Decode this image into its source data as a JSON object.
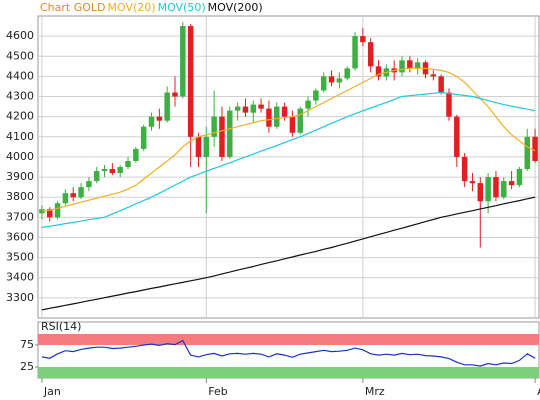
{
  "chart_data": [
    {
      "type": "candlestick",
      "title": "Chart GOLD",
      "title_color": "#e08a20",
      "ylim": [
        3200,
        4700
      ],
      "yticks": [
        3300,
        3400,
        3500,
        3600,
        3700,
        3800,
        3900,
        4000,
        4100,
        4200,
        4300,
        4400,
        4500,
        4600
      ],
      "xticks": [
        {
          "value": 0,
          "label": "Jan"
        },
        {
          "value": 21,
          "label": "Feb"
        },
        {
          "value": 41,
          "label": "Mrz"
        },
        {
          "value": 63,
          "label": "A"
        }
      ],
      "grid": true,
      "up_color": "#3cb043",
      "down_color": "#e02020",
      "open": [
        3720,
        3740,
        3700,
        3770,
        3820,
        3800,
        3850,
        3880,
        3930,
        3940,
        3920,
        3950,
        3980,
        4040,
        4150,
        4200,
        4180,
        4320,
        4300,
        4650,
        4100,
        4000,
        4100,
        4200,
        4000,
        4230,
        4250,
        4220,
        4260,
        4240,
        4150,
        4250,
        4200,
        4120,
        4240,
        4280,
        4330,
        4400,
        4370,
        4390,
        4440,
        4600,
        4570,
        4450,
        4400,
        4440,
        4420,
        4480,
        4440,
        4470,
        4410,
        4400,
        4320,
        4200,
        4000,
        3880,
        3870,
        3780,
        3900,
        3800,
        3880,
        3860,
        3940,
        4100
      ],
      "high": [
        3760,
        3750,
        3780,
        3840,
        3850,
        3870,
        3900,
        3950,
        3960,
        3970,
        3960,
        4000,
        4050,
        4160,
        4220,
        4240,
        4350,
        4400,
        4670,
        4660,
        4120,
        4150,
        4330,
        4250,
        4250,
        4270,
        4290,
        4280,
        4290,
        4280,
        4270,
        4270,
        4230,
        4250,
        4300,
        4340,
        4420,
        4430,
        4420,
        4450,
        4620,
        4640,
        4590,
        4480,
        4460,
        4480,
        4500,
        4500,
        4490,
        4480,
        4430,
        4410,
        4340,
        4210,
        4020,
        3920,
        3900,
        3920,
        3930,
        3900,
        3930,
        3950,
        4140,
        4140
      ],
      "low": [
        3690,
        3680,
        3690,
        3760,
        3780,
        3790,
        3830,
        3870,
        3900,
        3910,
        3900,
        3940,
        3970,
        4030,
        4130,
        4140,
        4170,
        4250,
        4290,
        3950,
        3950,
        3720,
        4050,
        3980,
        3990,
        4180,
        4200,
        4170,
        4220,
        4120,
        4140,
        4180,
        4100,
        4110,
        4200,
        4260,
        4320,
        4350,
        4340,
        4380,
        4430,
        4550,
        4420,
        4380,
        4380,
        4380,
        4400,
        4420,
        4410,
        4390,
        4380,
        4310,
        4180,
        3950,
        3850,
        3830,
        3550,
        3720,
        3780,
        3790,
        3840,
        3850,
        3930,
        3970
      ],
      "close": [
        3740,
        3700,
        3770,
        3820,
        3800,
        3850,
        3880,
        3930,
        3940,
        3920,
        3950,
        3980,
        4040,
        4150,
        4200,
        4180,
        4320,
        4300,
        4650,
        4100,
        4000,
        4100,
        4200,
        4000,
        4230,
        4250,
        4220,
        4260,
        4240,
        4150,
        4250,
        4200,
        4120,
        4240,
        4280,
        4330,
        4400,
        4370,
        4390,
        4440,
        4600,
        4570,
        4450,
        4400,
        4440,
        4420,
        4480,
        4440,
        4470,
        4410,
        4400,
        4320,
        4200,
        4000,
        3880,
        3870,
        3780,
        3900,
        3800,
        3880,
        3860,
        3940,
        4100,
        3980
      ],
      "series": [
        {
          "name": "MOV(20)",
          "color": "#f0b020",
          "values": [
            3730,
            3735,
            3745,
            3755,
            3765,
            3775,
            3785,
            3795,
            3805,
            3815,
            3825,
            3840,
            3860,
            3890,
            3920,
            3950,
            3980,
            4010,
            4050,
            4080,
            4100,
            4110,
            4120,
            4130,
            4140,
            4150,
            4160,
            4170,
            4180,
            4185,
            4190,
            4195,
            4200,
            4210,
            4230,
            4250,
            4270,
            4290,
            4310,
            4330,
            4350,
            4370,
            4390,
            4410,
            4420,
            4430,
            4435,
            4440,
            4440,
            4440,
            4435,
            4430,
            4420,
            4400,
            4370,
            4330,
            4290,
            4250,
            4200,
            4150,
            4110,
            4080,
            4050,
            4030
          ]
        },
        {
          "name": "MOV(50)",
          "color": "#20c8e0",
          "values": [
            3650,
            3656,
            3662,
            3669,
            3675,
            3681,
            3688,
            3694,
            3700,
            3717,
            3733,
            3750,
            3767,
            3783,
            3800,
            3820,
            3840,
            3860,
            3880,
            3900,
            3914,
            3929,
            3943,
            3957,
            3971,
            3986,
            4000,
            4014,
            4029,
            4043,
            4057,
            4071,
            4086,
            4100,
            4117,
            4133,
            4150,
            4167,
            4183,
            4200,
            4214,
            4229,
            4243,
            4257,
            4271,
            4286,
            4300,
            4304,
            4308,
            4312,
            4316,
            4320,
            4315,
            4310,
            4305,
            4300,
            4290,
            4280,
            4270,
            4260,
            4252,
            4245,
            4237,
            4230
          ]
        },
        {
          "name": "MOV(200)",
          "color": "#111111",
          "values": [
            3240,
            3248,
            3255,
            3263,
            3270,
            3278,
            3286,
            3293,
            3301,
            3309,
            3316,
            3324,
            3331,
            3339,
            3347,
            3354,
            3362,
            3370,
            3377,
            3385,
            3392,
            3400,
            3409,
            3419,
            3428,
            3438,
            3447,
            3456,
            3466,
            3475,
            3484,
            3494,
            3503,
            3513,
            3522,
            3531,
            3541,
            3550,
            3561,
            3571,
            3582,
            3593,
            3604,
            3614,
            3625,
            3636,
            3646,
            3657,
            3668,
            3679,
            3689,
            3700,
            3708,
            3717,
            3725,
            3733,
            3742,
            3750,
            3758,
            3767,
            3775,
            3783,
            3792,
            3800
          ]
        }
      ]
    },
    {
      "type": "line",
      "title": "RSI(14)",
      "ylim": [
        0,
        100
      ],
      "yticks": [
        25,
        75
      ],
      "bands": [
        {
          "from": 75,
          "to": 100,
          "color": "#f47c7c"
        },
        {
          "from": 0,
          "to": 25,
          "color": "#7ccf7c"
        }
      ],
      "series": [
        {
          "name": "RSI(14)",
          "color": "#1f2fcf",
          "values": [
            48,
            45,
            55,
            62,
            60,
            65,
            68,
            70,
            70,
            67,
            68,
            70,
            72,
            75,
            77,
            74,
            78,
            76,
            85,
            52,
            48,
            53,
            56,
            50,
            55,
            56,
            54,
            56,
            54,
            48,
            55,
            52,
            47,
            54,
            57,
            60,
            63,
            60,
            61,
            63,
            68,
            64,
            55,
            52,
            54,
            52,
            56,
            53,
            54,
            51,
            50,
            48,
            44,
            36,
            30,
            30,
            27,
            33,
            30,
            34,
            33,
            40,
            55,
            45
          ]
        }
      ]
    }
  ]
}
